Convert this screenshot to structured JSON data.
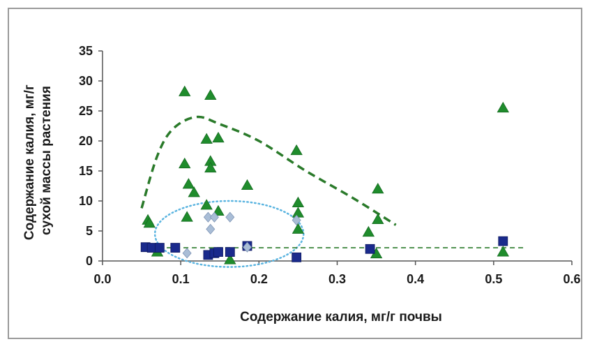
{
  "chart_data": {
    "type": "scatter",
    "xlabel": "Содержание калия, мг/г почвы",
    "ylabel_lines": [
      "Содержание калия, мг/г",
      "сухой массы растения"
    ],
    "xlim": [
      0.0,
      0.6
    ],
    "ylim": [
      0,
      35
    ],
    "x_ticks": [
      "0.0",
      "0.1",
      "0.2",
      "0.3",
      "0.4",
      "0.5",
      "0.6"
    ],
    "y_ticks": [
      "0",
      "5",
      "10",
      "15",
      "20",
      "25",
      "30",
      "35"
    ],
    "grid": false,
    "legend": "none",
    "series": [
      {
        "marker": "triangle",
        "color": "#1f8c2c",
        "points": [
          [
            0.058,
            6.8
          ],
          [
            0.06,
            6.3
          ],
          [
            0.07,
            1.5
          ],
          [
            0.105,
            28.2
          ],
          [
            0.105,
            16.2
          ],
          [
            0.108,
            7.3
          ],
          [
            0.11,
            12.8
          ],
          [
            0.117,
            11.4
          ],
          [
            0.133,
            20.3
          ],
          [
            0.133,
            9.3
          ],
          [
            0.138,
            27.6
          ],
          [
            0.138,
            16.6
          ],
          [
            0.138,
            15.5
          ],
          [
            0.148,
            20.5
          ],
          [
            0.148,
            8.3
          ],
          [
            0.163,
            0.2
          ],
          [
            0.185,
            12.6
          ],
          [
            0.248,
            18.4
          ],
          [
            0.25,
            9.7
          ],
          [
            0.25,
            8.0
          ],
          [
            0.25,
            5.3
          ],
          [
            0.34,
            4.8
          ],
          [
            0.35,
            1.2
          ],
          [
            0.352,
            12.0
          ],
          [
            0.352,
            6.9
          ],
          [
            0.512,
            25.5
          ],
          [
            0.512,
            1.5
          ]
        ]
      },
      {
        "marker": "square",
        "color": "#1a2a8c",
        "points": [
          [
            0.055,
            2.3
          ],
          [
            0.063,
            2.2
          ],
          [
            0.073,
            2.2
          ],
          [
            0.093,
            2.2
          ],
          [
            0.135,
            1.0
          ],
          [
            0.143,
            1.3
          ],
          [
            0.148,
            1.5
          ],
          [
            0.163,
            1.5
          ],
          [
            0.185,
            2.5
          ],
          [
            0.248,
            0.6
          ],
          [
            0.342,
            2.0
          ],
          [
            0.512,
            3.3
          ]
        ]
      },
      {
        "marker": "diamond",
        "color": "#a9bdd6",
        "points": [
          [
            0.108,
            1.3
          ],
          [
            0.135,
            7.3
          ],
          [
            0.138,
            5.3
          ],
          [
            0.143,
            7.3
          ],
          [
            0.163,
            7.3
          ],
          [
            0.185,
            2.3
          ],
          [
            0.248,
            6.8
          ]
        ]
      }
    ],
    "trend_curve": {
      "style": "dashed",
      "color": "#2a7a2a",
      "points": [
        [
          0.05,
          8.8
        ],
        [
          0.07,
          17.5
        ],
        [
          0.09,
          22.0
        ],
        [
          0.12,
          24.0
        ],
        [
          0.15,
          22.8
        ],
        [
          0.2,
          20.0
        ],
        [
          0.26,
          15.0
        ],
        [
          0.32,
          10.5
        ],
        [
          0.375,
          6.0
        ]
      ]
    },
    "reference_line": {
      "y": 2.2,
      "x_range": [
        0.05,
        0.54
      ],
      "style": "dashed",
      "color": "#2a7a2a"
    },
    "ellipse": {
      "cx": 0.162,
      "cy": 4.5,
      "rx": 0.095,
      "ry": 5.5,
      "style": "dotted",
      "color": "#5ab4e0"
    }
  }
}
